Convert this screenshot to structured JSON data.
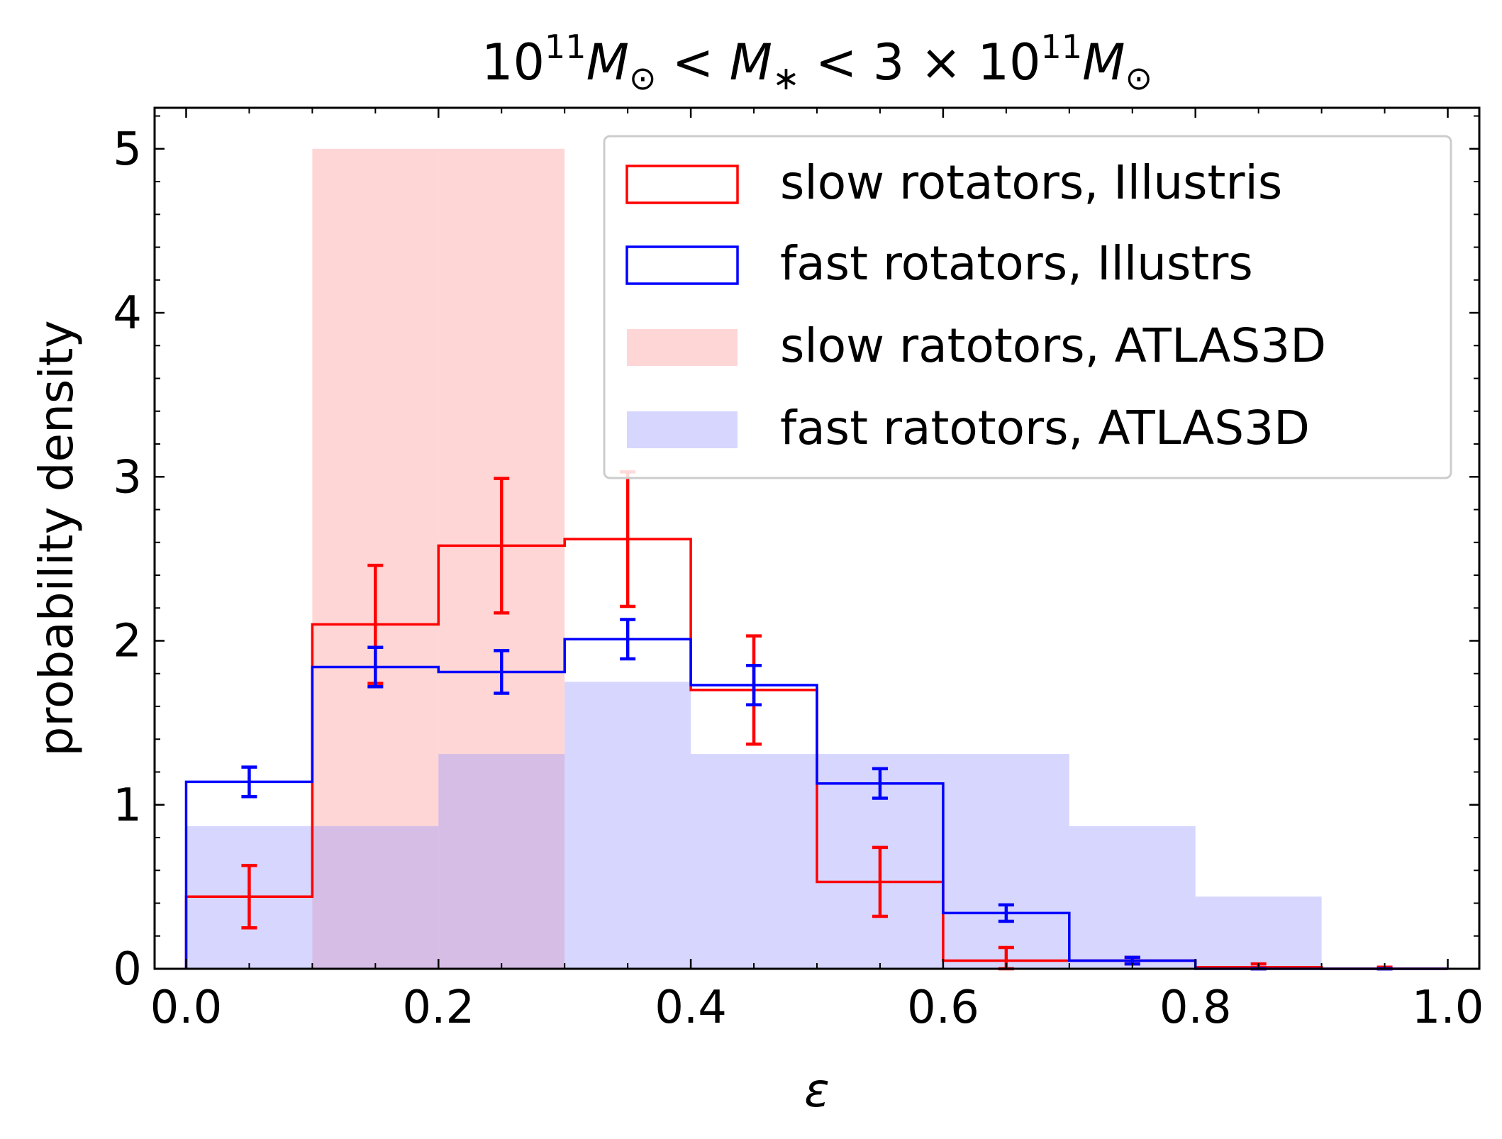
{
  "chart_data": {
    "type": "bar",
    "subtype": "histogram-with-errorbars",
    "title": {
      "prefix": "10",
      "exp1": "11",
      "m1": "M",
      "sub1": "⊙",
      "rel1": " < ",
      "m2": "M",
      "sub2": "∗",
      "rel2": " < 3 × 10",
      "exp2": "11",
      "m3": "M",
      "sub3": "⊙"
    },
    "xlabel": "ε",
    "ylabel": "probability density",
    "xlim": [
      -0.025,
      1.025
    ],
    "ylim": [
      0,
      5.25
    ],
    "xticks": [
      0.0,
      0.2,
      0.4,
      0.6,
      0.8,
      1.0
    ],
    "xtick_labels": [
      "0.0",
      "0.2",
      "0.4",
      "0.6",
      "0.8",
      "1.0"
    ],
    "yticks": [
      0,
      1,
      2,
      3,
      4,
      5
    ],
    "ytick_labels": [
      "0",
      "1",
      "2",
      "3",
      "4",
      "5"
    ],
    "bin_edges": [
      0.0,
      0.1,
      0.2,
      0.3,
      0.4,
      0.5,
      0.6,
      0.7,
      0.8,
      0.9,
      1.0
    ],
    "legend_position": "top-right",
    "series": [
      {
        "name": "slow rotators, Illustris",
        "style": "step",
        "color": "#ff0000",
        "values": [
          0.44,
          2.1,
          2.58,
          2.62,
          1.7,
          0.53,
          0.05,
          0.05,
          0.01,
          0.0
        ],
        "errors": [
          0.19,
          0.36,
          0.41,
          0.41,
          0.33,
          0.21,
          0.08,
          0.02,
          0.02,
          0.01
        ]
      },
      {
        "name": "fast rotators, Illustrs",
        "style": "step",
        "color": "#0000ff",
        "values": [
          1.14,
          1.84,
          1.81,
          2.01,
          1.73,
          1.13,
          0.34,
          0.05,
          0.0,
          0.0
        ],
        "errors": [
          0.09,
          0.12,
          0.13,
          0.12,
          0.12,
          0.09,
          0.05,
          0.02,
          0.0,
          0.0
        ]
      },
      {
        "name": "slow ratotors, ATLAS3D",
        "style": "filled",
        "color": "#ff9999",
        "opacity": 0.4,
        "values": [
          0.0,
          5.0,
          5.0,
          0.0,
          0.0,
          0.0,
          0.0,
          0.0,
          0.0,
          0.0
        ]
      },
      {
        "name": "fast ratotors, ATLAS3D",
        "style": "filled",
        "color": "#9999ff",
        "opacity": 0.4,
        "values": [
          0.87,
          0.87,
          1.31,
          1.75,
          1.31,
          1.31,
          1.31,
          0.87,
          0.44,
          0.0
        ]
      }
    ]
  }
}
